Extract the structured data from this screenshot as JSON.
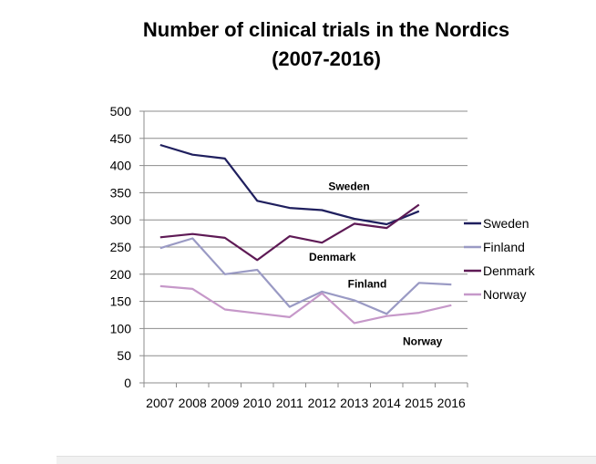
{
  "chart_data": {
    "type": "line",
    "title": "Number of clinical trials in the Nordics",
    "subtitle": "(2007-2016)",
    "xlabel": "",
    "ylabel": "",
    "ylim": [
      0,
      500
    ],
    "yticks": [
      0,
      50,
      100,
      150,
      200,
      250,
      300,
      350,
      400,
      450,
      500
    ],
    "x": [
      "2007",
      "2008",
      "2009",
      "2010",
      "2011",
      "2012",
      "2013",
      "2014",
      "2015",
      "2016"
    ],
    "grid": true,
    "legend_position": "right",
    "series": [
      {
        "name": "Sweden",
        "color": "#1f1f5e",
        "values": [
          438,
          420,
          413,
          335,
          322,
          318,
          302,
          292,
          316,
          null
        ]
      },
      {
        "name": "Finland",
        "color": "#9a9ac4",
        "values": [
          248,
          266,
          200,
          208,
          140,
          168,
          152,
          127,
          184,
          181
        ]
      },
      {
        "name": "Denmark",
        "color": "#5e1a55",
        "values": [
          268,
          274,
          267,
          226,
          270,
          258,
          293,
          285,
          328,
          null
        ]
      },
      {
        "name": "Norway",
        "color": "#c698c9",
        "values": [
          178,
          173,
          135,
          128,
          121,
          165,
          110,
          123,
          129,
          143
        ]
      }
    ],
    "annotations": [
      {
        "text": "Sweden",
        "x": 2012.2,
        "y": 355
      },
      {
        "text": "Denmark",
        "x": 2011.6,
        "y": 225
      },
      {
        "text": "Finland",
        "x": 2012.8,
        "y": 175
      },
      {
        "text": "Norway",
        "x": 2014.5,
        "y": 70
      }
    ]
  }
}
